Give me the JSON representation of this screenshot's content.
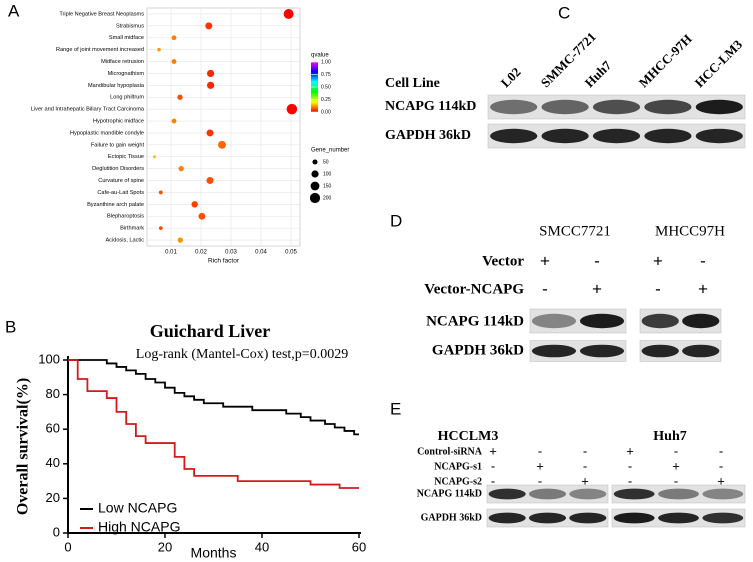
{
  "panel_labels": [
    "A",
    "B",
    "C",
    "D",
    "E"
  ],
  "chart_data": [
    {
      "type": "dotplot",
      "x_label": "Rich factor",
      "categories": [
        "Triple Negative Breast Neoplasms",
        "Strabismus",
        "Small midface",
        "Range of joint movement increased",
        "Midface retrusion",
        "Micrognathism",
        "Mandibular hypoplasia",
        "Long philtrum",
        "Liver and Intrahepatic Biliary Tract Carcinoma",
        "Hypotrophic midface",
        "Hypoplastic mandible condyle",
        "Failure to gain weight",
        "Ectopic Tissue",
        "Deglutition Disorders",
        "Curvature of spine",
        "Cafe-au-Lait Spots",
        "Byzanthine arch palate",
        "Blepharoptosis",
        "Birthmark",
        "Acidosis, Lactic"
      ],
      "values": [
        0.0492,
        0.0226,
        0.011,
        0.006,
        0.011,
        0.0232,
        0.0232,
        0.013,
        0.0503,
        0.011,
        0.023,
        0.027,
        0.0045,
        0.0134,
        0.023,
        0.0066,
        0.0179,
        0.0203,
        0.0066,
        0.0131
      ],
      "sizes": [
        190,
        95,
        45,
        25,
        45,
        100,
        100,
        55,
        215,
        45,
        95,
        120,
        15,
        55,
        95,
        28,
        80,
        90,
        28,
        55
      ],
      "qvalues": [
        0.001,
        0.04,
        0.1,
        0.12,
        0.1,
        0.03,
        0.03,
        0.06,
        0.001,
        0.1,
        0.04,
        0.08,
        0.14,
        0.1,
        0.06,
        0.06,
        0.05,
        0.06,
        0.06,
        0.12
      ],
      "xlim": [
        0.002,
        0.053
      ],
      "xticks": [
        0.01,
        0.02,
        0.03,
        0.04,
        0.05
      ],
      "grid": true,
      "color_title": "qvalue",
      "color_lim": [
        0,
        1
      ],
      "color_ticks": [
        {
          "value": 0,
          "label": "0.00"
        },
        0.25,
        {
          "value": 0.5,
          "label": "0.50"
        },
        0.75,
        {
          "value": 1,
          "label": "1.00"
        }
      ],
      "size_title": "Gene_number",
      "size_ticks": [
        50,
        100,
        150,
        200
      ]
    },
    {
      "type": "km",
      "title": "Guichard Liver",
      "annotation": "Log-rank (Mantel-Cox) test,p=0.0029",
      "x_label": "Months",
      "y_label": "Overall survival(%)",
      "xlim": [
        0,
        60
      ],
      "ylim": [
        0,
        100
      ],
      "xticks": [
        0,
        20,
        40,
        60
      ],
      "yticks": [
        0,
        20,
        40,
        60,
        80,
        100
      ],
      "legend": "lower-left",
      "series": [
        {
          "name": "Low NCAPG",
          "color": "#000000",
          "x": [
            0,
            8,
            10,
            12,
            14,
            16,
            18,
            20,
            22,
            24,
            26,
            28,
            32,
            38,
            45,
            48,
            50,
            53,
            55,
            57,
            59,
            60
          ],
          "values": [
            100,
            98,
            96,
            94,
            92,
            89,
            87,
            84,
            81,
            79,
            77,
            75,
            73,
            71,
            69,
            67,
            65,
            63,
            61,
            59,
            57,
            57
          ]
        },
        {
          "name": "High NCAPG",
          "color": "#d7191c",
          "x": [
            0,
            2,
            4,
            8,
            10,
            12,
            14,
            16,
            22,
            24,
            26,
            35,
            50,
            56,
            60
          ],
          "values": [
            100,
            89,
            82,
            78,
            70,
            63,
            56,
            52,
            44,
            37,
            33,
            30,
            28,
            26,
            26
          ]
        }
      ]
    }
  ],
  "blot_c": {
    "row_label": "Cell Line",
    "lanes": [
      "L02",
      "SMMC-7721",
      "Huh7",
      "MHCC-97H",
      "HCC-LM3"
    ],
    "rows": [
      "NCAPG 114kD",
      "GAPDH 36kD"
    ]
  },
  "blot_d": {
    "groups": [
      "SMCC7721",
      "MHCC97H"
    ],
    "conditions": [
      {
        "name": "Vector",
        "signs": [
          "+",
          "-",
          "+",
          "-"
        ]
      },
      {
        "name": "Vector-NCAPG",
        "signs": [
          "-",
          "+",
          "-",
          "+"
        ]
      }
    ],
    "rows": [
      "NCAPG 114kD",
      "GAPDH 36kD"
    ]
  },
  "blot_e": {
    "groups": [
      "HCCLM3",
      "Huh7"
    ],
    "conditions": [
      {
        "name": "Control-siRNA",
        "signs": [
          "+",
          "-",
          "-",
          "+",
          "-",
          "-"
        ]
      },
      {
        "name": "NCAPG-s1",
        "signs": [
          "-",
          "+",
          "-",
          "-",
          "+",
          "-"
        ]
      },
      {
        "name": "NCAPG-s2",
        "signs": [
          "-",
          "-",
          "+",
          "-",
          "-",
          "+"
        ]
      }
    ],
    "rows": [
      "NCAPG 114kD",
      "GAPDH 36kD"
    ]
  }
}
